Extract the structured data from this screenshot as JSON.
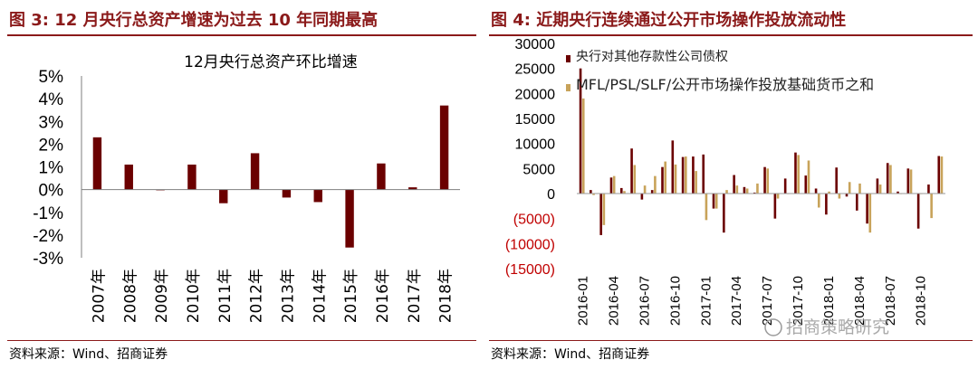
{
  "left": {
    "fig_title": "图 3:  12 月央行总资产增速为过去 10 年同期最高",
    "source": "资料来源：Wind、招商证券"
  },
  "right": {
    "fig_title": "图 4:  近期央行连续通过公开市场操作投放流动性",
    "source": "资料来源：Wind、招商证券",
    "watermark": "招商策略研究"
  },
  "colors": {
    "accent": "#8B1A1A",
    "bar_dark": "#6B0000",
    "bar_gold": "#C8A35A"
  },
  "chart_data": [
    {
      "type": "bar",
      "title": "12月央行总资产环比增速",
      "categories": [
        "2007年",
        "2008年",
        "2009年",
        "2010年",
        "2011年",
        "2012年",
        "2013年",
        "2014年",
        "2015年",
        "2016年",
        "2017年",
        "2018年"
      ],
      "values": [
        2.3,
        1.1,
        0.0,
        1.1,
        -0.6,
        1.6,
        -0.35,
        -0.55,
        -2.55,
        1.15,
        0.1,
        3.7
      ],
      "yticks": [
        "5%",
        "4%",
        "3%",
        "2%",
        "1%",
        "0%",
        "-1%",
        "-2%",
        "-3%"
      ],
      "ylim": [
        -3,
        5
      ],
      "grid": false,
      "xlabel": "",
      "ylabel": ""
    },
    {
      "type": "bar",
      "title": "",
      "series": [
        {
          "name": "央行对其他存款性公司债权",
          "values": [
            25000,
            700,
            -8300,
            3200,
            1100,
            9000,
            -1200,
            700,
            5300,
            10600,
            7300,
            7400,
            7800,
            -3000,
            -7800,
            3700,
            1300,
            200,
            5300,
            -5000,
            3000,
            8200,
            3600,
            1000,
            -4200,
            5200,
            -600,
            -3400,
            -6000,
            3000,
            6100,
            400,
            5000,
            -7000,
            1800,
            7500
          ]
        },
        {
          "name": "MFL/PSL/SLF/公开市场操作投放基础货币之和",
          "values": [
            19000,
            -300,
            -6300,
            3500,
            500,
            5700,
            1600,
            3500,
            6400,
            5800,
            7400,
            4500,
            -5300,
            -3000,
            700,
            1600,
            1000,
            2000,
            5000,
            -1000,
            0,
            7700,
            6600,
            -2800,
            400,
            -1000,
            2300,
            2000,
            -7800,
            1800,
            5700,
            -100,
            4800,
            0,
            -4900,
            7400
          ]
        }
      ],
      "xticks": [
        "2016-01",
        "2016-04",
        "2016-07",
        "2016-10",
        "2017-01",
        "2017-04",
        "2017-07",
        "2017-10",
        "2018-01",
        "2018-04",
        "2018-07",
        "2018-10"
      ],
      "yticks": [
        "30000",
        "25000",
        "20000",
        "15000",
        "10000",
        "5000",
        "0",
        "(5000)",
        "(10000)",
        "(15000)"
      ],
      "ylim": [
        -15000,
        30000
      ],
      "legend": "top-left",
      "grid": false
    }
  ]
}
